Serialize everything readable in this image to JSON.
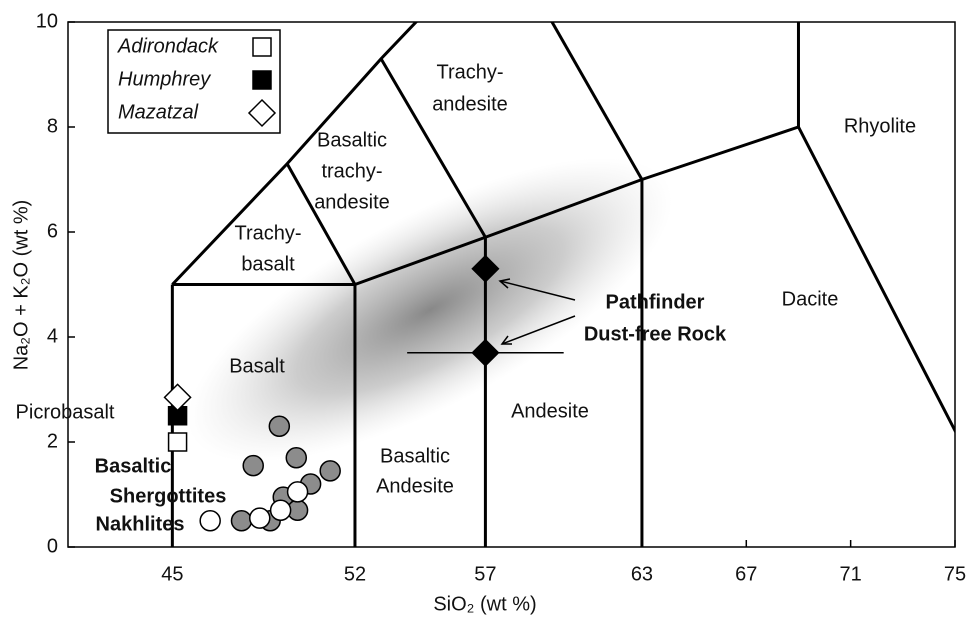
{
  "chart_data": {
    "type": "scatter",
    "x_label": "SiO₂ (wt %)",
    "y_label": "Na₂O + K₂O (wt %)",
    "xlim": [
      41,
      75
    ],
    "ylim": [
      0,
      10
    ],
    "xticks": [
      45,
      52,
      57,
      63,
      67,
      71,
      75
    ],
    "yticks": [
      0,
      2,
      4,
      6,
      8,
      10
    ],
    "legend": "upper left",
    "series": [
      {
        "name": "Adirondack",
        "marker": "square",
        "color": "#ffffff",
        "x": [
          45.2
        ],
        "values": [
          2.0
        ]
      },
      {
        "name": "Humphrey",
        "marker": "square",
        "color": "#000000",
        "x": [
          45.2
        ],
        "values": [
          2.5
        ]
      },
      {
        "name": "Mazatzal",
        "marker": "diamond",
        "color": "#ffffff",
        "x": [
          45.2
        ],
        "values": [
          2.85
        ]
      },
      {
        "marker": "diamond",
        "color": "#000000",
        "x": [
          57,
          57
        ],
        "values": [
          5.3,
          3.7
        ],
        "xerr": [
          null,
          3
        ]
      },
      {
        "marker": "circle",
        "color": "#8c8c8c",
        "x": [
          49.1,
          48.1,
          49.75,
          51.05,
          50.3,
          49.25,
          49.8,
          47.65,
          48.75
        ],
        "values": [
          2.3,
          1.55,
          1.7,
          1.45,
          1.2,
          0.95,
          0.7,
          0.5,
          0.5
        ]
      },
      {
        "marker": "circle",
        "color": "#ffffff",
        "x": [
          46.45,
          48.35,
          49.15,
          49.8
        ],
        "values": [
          0.5,
          0.55,
          0.7,
          1.05
        ]
      }
    ],
    "boundaries": [
      {
        "x": [
          45,
          45
        ],
        "y": [
          0,
          5
        ]
      },
      {
        "x": [
          45,
          52,
          57,
          63,
          69,
          77.3
        ],
        "y": [
          5,
          5,
          5.9,
          7,
          8,
          0
        ]
      },
      {
        "x": [
          52,
          52
        ],
        "y": [
          0,
          5
        ]
      },
      {
        "x": [
          57,
          57
        ],
        "y": [
          0,
          5.9
        ]
      },
      {
        "x": [
          63,
          63
        ],
        "y": [
          0,
          7
        ]
      },
      {
        "x": [
          45,
          49.4,
          53,
          57.6
        ],
        "y": [
          5,
          7.3,
          9.3,
          11.7
        ]
      },
      {
        "x": [
          49.4,
          52
        ],
        "y": [
          7.3,
          5
        ]
      },
      {
        "x": [
          53,
          57
        ],
        "y": [
          9.3,
          5.9
        ]
      },
      {
        "x": [
          57.6,
          63
        ],
        "y": [
          11.7,
          7
        ]
      },
      {
        "x": [
          69,
          69
        ],
        "y": [
          8,
          13
        ]
      }
    ],
    "fields": [
      {
        "lines": [
          "Trachy-",
          "andesite"
        ]
      },
      {
        "lines": [
          "Basaltic",
          "trachy-",
          "andesite"
        ]
      },
      {
        "lines": [
          "Trachy-",
          "basalt"
        ]
      },
      {
        "lines": [
          "Rhyolite"
        ]
      },
      {
        "lines": [
          "Dacite"
        ]
      },
      {
        "lines": [
          "Basalt"
        ]
      },
      {
        "lines": [
          "Picrobasalt"
        ]
      },
      {
        "lines": [
          "Andesite"
        ]
      },
      {
        "lines": [
          "Basaltic",
          "Andesite"
        ]
      }
    ],
    "annotations": [
      {
        "lines": [
          "Pathfinder",
          "Dust-free Rock"
        ]
      },
      {
        "lines": [
          "Basaltic",
          "Shergottites"
        ]
      },
      {
        "lines": [
          "Nakhlites"
        ]
      }
    ]
  }
}
